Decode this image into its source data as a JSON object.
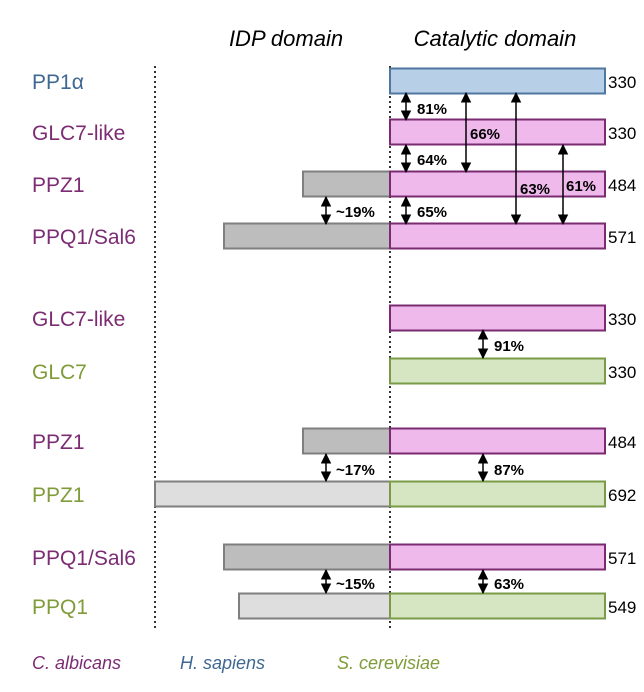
{
  "headers": {
    "idp": "IDP domain",
    "catalytic": "Catalytic domain"
  },
  "colors": {
    "sapiens_text": "#3e6891",
    "albicans_text": "#7b2c73",
    "cerevisiae_text": "#7f9b3a",
    "blue_fill": "#b8cfe8",
    "blue_stroke": "#4f77a0",
    "pink_fill": "#efb9ec",
    "pink_stroke": "#7a2b71",
    "green_fill": "#d6e6c2",
    "green_stroke": "#7a9b47",
    "dark_gray_fill": "#bdbdbd",
    "light_gray_fill": "#dedede",
    "gray_stroke": "#7f7f7f"
  },
  "proteins": [
    {
      "name": "PP1α",
      "species": "sapiens",
      "length": "330",
      "idp": "none"
    },
    {
      "name": "GLC7-like",
      "species": "albicans",
      "length": "330",
      "idp": "none"
    },
    {
      "name": "PPZ1",
      "species": "albicans",
      "length": "484",
      "idp": "short"
    },
    {
      "name": "PPQ1/Sal6",
      "species": "albicans",
      "length": "571",
      "idp": "long"
    },
    {
      "name": "GLC7-like",
      "species": "albicans",
      "length": "330",
      "idp": "none"
    },
    {
      "name": "GLC7",
      "species": "cerevisiae",
      "length": "330",
      "idp": "none"
    },
    {
      "name": "PPZ1",
      "species": "albicans",
      "length": "484",
      "idp": "short"
    },
    {
      "name": "PPZ1",
      "species": "cerevisiae",
      "length": "692",
      "idp": "longest"
    },
    {
      "name": "PPQ1/Sal6",
      "species": "albicans",
      "length": "571",
      "idp": "long"
    },
    {
      "name": "PPQ1",
      "species": "cerevisiae",
      "length": "549",
      "idp": "medium"
    }
  ],
  "identities": [
    {
      "label": "81%",
      "from": 0,
      "to": 1
    },
    {
      "label": "66%",
      "from": 0,
      "to": 2
    },
    {
      "label": "63%",
      "from": 0,
      "to": 3
    },
    {
      "label": "64%",
      "from": 1,
      "to": 2
    },
    {
      "label": "61%",
      "from": 1,
      "to": 3
    },
    {
      "label": "65%",
      "from": 2,
      "to": 3
    },
    {
      "label": "~19%",
      "from": 2,
      "to": 3
    },
    {
      "label": "91%",
      "from": 4,
      "to": 5
    },
    {
      "label": "87%",
      "from": 6,
      "to": 7
    },
    {
      "label": "~17%",
      "from": 6,
      "to": 7
    },
    {
      "label": "63%",
      "from": 8,
      "to": 9
    },
    {
      "label": "~15%",
      "from": 8,
      "to": 9
    }
  ],
  "legend": [
    {
      "label": "C. albicans",
      "species": "albicans"
    },
    {
      "label": "H. sapiens",
      "species": "sapiens"
    },
    {
      "label": "S. cerevisiae",
      "species": "cerevisiae"
    }
  ]
}
